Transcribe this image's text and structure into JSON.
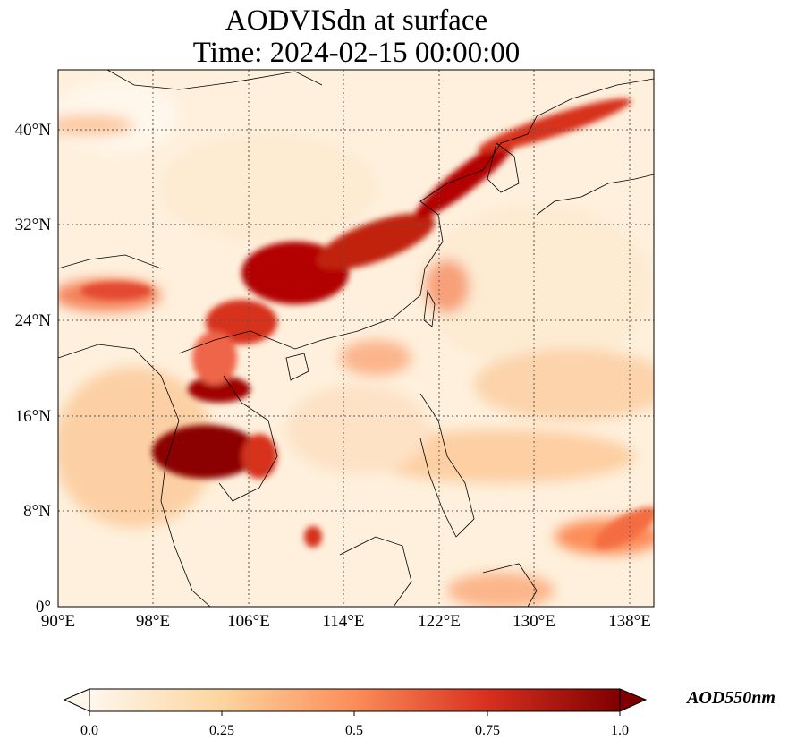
{
  "title": {
    "line1": "AODVISdn at surface",
    "line2": "Time: 2024-02-15 00:00:00"
  },
  "map": {
    "x_ticks": [
      "90°E",
      "98°E",
      "106°E",
      "114°E",
      "122°E",
      "130°E",
      "138°E"
    ],
    "y_ticks": [
      "0°",
      "8°N",
      "16°N",
      "24°N",
      "32°N",
      "40°N"
    ],
    "lon_range": [
      90,
      140
    ],
    "lat_range": [
      0,
      45
    ],
    "gridlines": true
  },
  "colorbar": {
    "label": "AOD550nm",
    "ticks": [
      "0.0",
      "0.25",
      "0.5",
      "0.75",
      "1.0"
    ],
    "range": [
      0,
      1
    ],
    "colormap": "OrRd",
    "extend": "both"
  },
  "colors": {
    "low": "#fff7ec",
    "mid1": "#fdd49e",
    "mid2": "#fc8d59",
    "mid3": "#d7301f",
    "high": "#7f0000"
  }
}
